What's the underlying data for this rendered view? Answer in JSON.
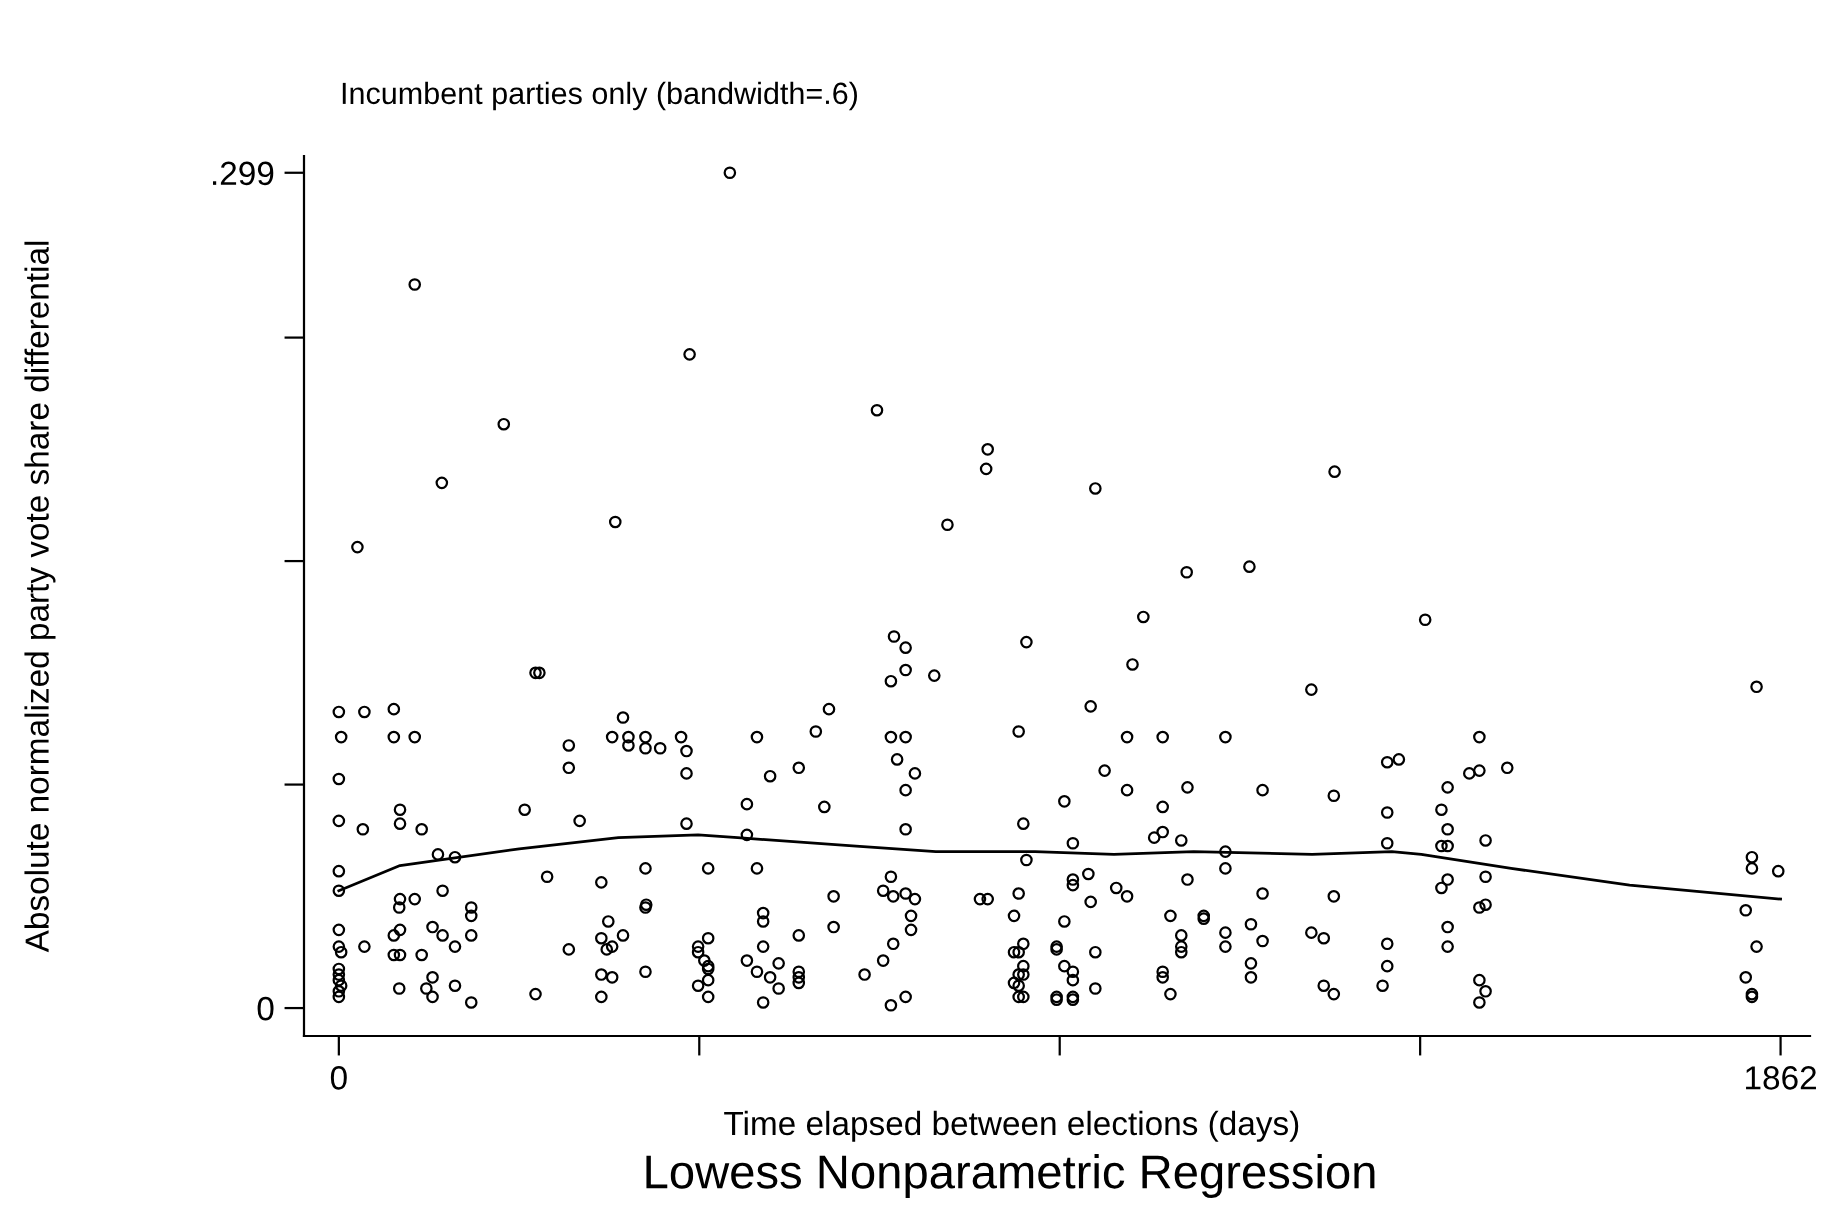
{
  "chart_data": {
    "type": "scatter",
    "title": "Lowess Nonparametric Regression",
    "subtitle": "Incumbent parties only (bandwidth=.6)",
    "xlabel": "Time elapsed between elections (days)",
    "ylabel": "Absolute normalized party vote share differential",
    "xlim": [
      -45,
      1900
    ],
    "ylim": [
      -0.01,
      0.305
    ],
    "xticks": [
      0,
      {
        "value": 465.5,
        "label": null
      },
      {
        "value": 931,
        "label": null
      },
      {
        "value": 1396.5,
        "label": null
      },
      1862
    ],
    "yticks": [
      0,
      {
        "value": 0.08,
        "label": null
      },
      {
        "value": 0.16,
        "label": null
      },
      {
        "value": 0.24,
        "label": null
      },
      {
        "value": 0.299,
        "label": ".299"
      }
    ],
    "series": [
      {
        "color": "#000000",
        "marker": "circle",
        "x": [
          0,
          33,
          71,
          3,
          71,
          98,
          0,
          0,
          31,
          79,
          79,
          107,
          128,
          150,
          0,
          0,
          79,
          98,
          78,
          134,
          171,
          171,
          0,
          79,
          71,
          121,
          134,
          171,
          0,
          3,
          33,
          71,
          79,
          107,
          150,
          0,
          0,
          0,
          3,
          0,
          0,
          78,
          113,
          121,
          121,
          150,
          171,
          254,
          259,
          297,
          297,
          240,
          311,
          269,
          254,
          297,
          339,
          348,
          339,
          367,
          346,
          353,
          339,
          353,
          339,
          396,
          396,
          396,
          397,
          367,
          353,
          374,
          374,
          396,
          396,
          415,
          442,
          449,
          449,
          449,
          732,
          888,
          713,
          732,
          769,
          633,
          540,
          616,
          594,
          557,
          713,
          732,
          721,
          744,
          732,
          878,
          527,
          627,
          527,
          732,
          884,
          477,
          540,
          888,
          713,
          703,
          716,
          732,
          744,
          828,
          838,
          878,
          639,
          548,
          548,
          739,
          872,
          639,
          594,
          739,
          477,
          464,
          464,
          472,
          477,
          477,
          527,
          548,
          540,
          557,
          568,
          594,
          594,
          594,
          716,
          703,
          884,
          872,
          878,
          884,
          878,
          884,
          872,
          878,
          878,
          884,
          464,
          477,
          477,
          548,
          568,
          679,
          713,
          732,
          1025,
          971,
          1256,
          1018,
          1064,
          1145,
          989,
          937,
          1018,
          1096,
          1064,
          1193,
          1285,
          1354,
          1369,
          1354,
          948,
          1053,
          1064,
          1088,
          1145,
          1354,
          1145,
          948,
          948,
          968,
          1004,
          1018,
          1096,
          1193,
          1285,
          971,
          937,
          1074,
          1117,
          1117,
          1088,
          1088,
          1088,
          1145,
          1145,
          1178,
          1193,
          1256,
          1272,
          1354,
          927,
          927,
          977,
          937,
          948,
          948,
          1064,
          1064,
          1178,
          1178,
          1354,
          927,
          927,
          948,
          948,
          977,
          1074,
          1272,
          1285,
          1348,
          1831,
          1473,
          1460,
          1473,
          1509,
          1432,
          1424,
          1432,
          1424,
          1432,
          1481,
          1825,
          1825,
          1859,
          1432,
          1424,
          1481,
          1473,
          1481,
          1432,
          1432,
          1817,
          1831,
          1817,
          1825,
          1825,
          1473,
          1481,
          1473,
          98,
          453,
          213,
          133,
          357,
          24,
          695,
          838,
          836,
          786,
          717,
          505,
          977,
          1286,
          1095,
          1176,
          1039,
          1403
        ],
        "values": [
          0.106,
          0.106,
          0.107,
          0.097,
          0.097,
          0.097,
          0.082,
          0.067,
          0.064,
          0.071,
          0.066,
          0.064,
          0.055,
          0.054,
          0.049,
          0.042,
          0.039,
          0.039,
          0.036,
          0.042,
          0.036,
          0.033,
          0.028,
          0.028,
          0.026,
          0.029,
          0.026,
          0.026,
          0.022,
          0.02,
          0.022,
          0.019,
          0.019,
          0.019,
          0.022,
          0.014,
          0.012,
          0.01,
          0.008,
          0.006,
          0.004,
          0.007,
          0.007,
          0.011,
          0.004,
          0.008,
          0.002,
          0.12,
          0.12,
          0.094,
          0.086,
          0.071,
          0.067,
          0.047,
          0.005,
          0.021,
          0.045,
          0.031,
          0.025,
          0.026,
          0.021,
          0.022,
          0.012,
          0.011,
          0.004,
          0.013,
          0.05,
          0.036,
          0.037,
          0.104,
          0.097,
          0.097,
          0.094,
          0.097,
          0.093,
          0.093,
          0.097,
          0.092,
          0.084,
          0.066,
          0.129,
          0.131,
          0.117,
          0.121,
          0.119,
          0.107,
          0.097,
          0.099,
          0.086,
          0.083,
          0.097,
          0.097,
          0.089,
          0.084,
          0.078,
          0.099,
          0.073,
          0.072,
          0.062,
          0.064,
          0.066,
          0.05,
          0.05,
          0.053,
          0.047,
          0.042,
          0.04,
          0.041,
          0.039,
          0.039,
          0.039,
          0.041,
          0.04,
          0.034,
          0.031,
          0.033,
          0.033,
          0.029,
          0.026,
          0.028,
          0.025,
          0.022,
          0.02,
          0.017,
          0.015,
          0.014,
          0.017,
          0.022,
          0.013,
          0.011,
          0.016,
          0.013,
          0.011,
          0.009,
          0.023,
          0.017,
          0.023,
          0.02,
          0.02,
          0.015,
          0.012,
          0.012,
          0.009,
          0.008,
          0.004,
          0.004,
          0.008,
          0.01,
          0.004,
          0.002,
          0.007,
          0.012,
          0.001,
          0.004,
          0.123,
          0.108,
          0.114,
          0.097,
          0.097,
          0.097,
          0.085,
          0.074,
          0.078,
          0.079,
          0.072,
          0.078,
          0.076,
          0.088,
          0.089,
          0.07,
          0.059,
          0.061,
          0.063,
          0.06,
          0.056,
          0.059,
          0.05,
          0.046,
          0.044,
          0.048,
          0.043,
          0.04,
          0.046,
          0.041,
          0.04,
          0.038,
          0.031,
          0.033,
          0.033,
          0.032,
          0.026,
          0.022,
          0.02,
          0.027,
          0.022,
          0.03,
          0.024,
          0.027,
          0.025,
          0.023,
          0.022,
          0.021,
          0.02,
          0.015,
          0.013,
          0.01,
          0.013,
          0.011,
          0.016,
          0.011,
          0.015,
          0.004,
          0.003,
          0.004,
          0.003,
          0.007,
          0.005,
          0.008,
          0.005,
          0.008,
          0.115,
          0.097,
          0.084,
          0.085,
          0.086,
          0.079,
          0.071,
          0.064,
          0.058,
          0.058,
          0.06,
          0.054,
          0.05,
          0.049,
          0.046,
          0.043,
          0.047,
          0.036,
          0.037,
          0.029,
          0.022,
          0.035,
          0.022,
          0.011,
          0.005,
          0.004,
          0.01,
          0.006,
          0.002,
          0.259,
          0.234,
          0.209,
          0.188,
          0.174,
          0.165,
          0.214,
          0.2,
          0.193,
          0.173,
          0.133,
          0.299,
          0.186,
          0.192,
          0.156,
          0.158,
          0.14,
          0.139
        ]
      },
      {
        "type": "line",
        "color": "#000000",
        "marker": "none",
        "line_style": "solid",
        "x": [
          0,
          79,
          233,
          361,
          464,
          515,
          668,
          771,
          899,
          1001,
          1104,
          1257,
          1360,
          1398,
          1514,
          1667,
          1862
        ],
        "values": [
          0.042,
          0.051,
          0.057,
          0.061,
          0.062,
          0.061,
          0.058,
          0.056,
          0.056,
          0.055,
          0.056,
          0.055,
          0.056,
          0.055,
          0.05,
          0.044,
          0.039
        ]
      }
    ]
  }
}
